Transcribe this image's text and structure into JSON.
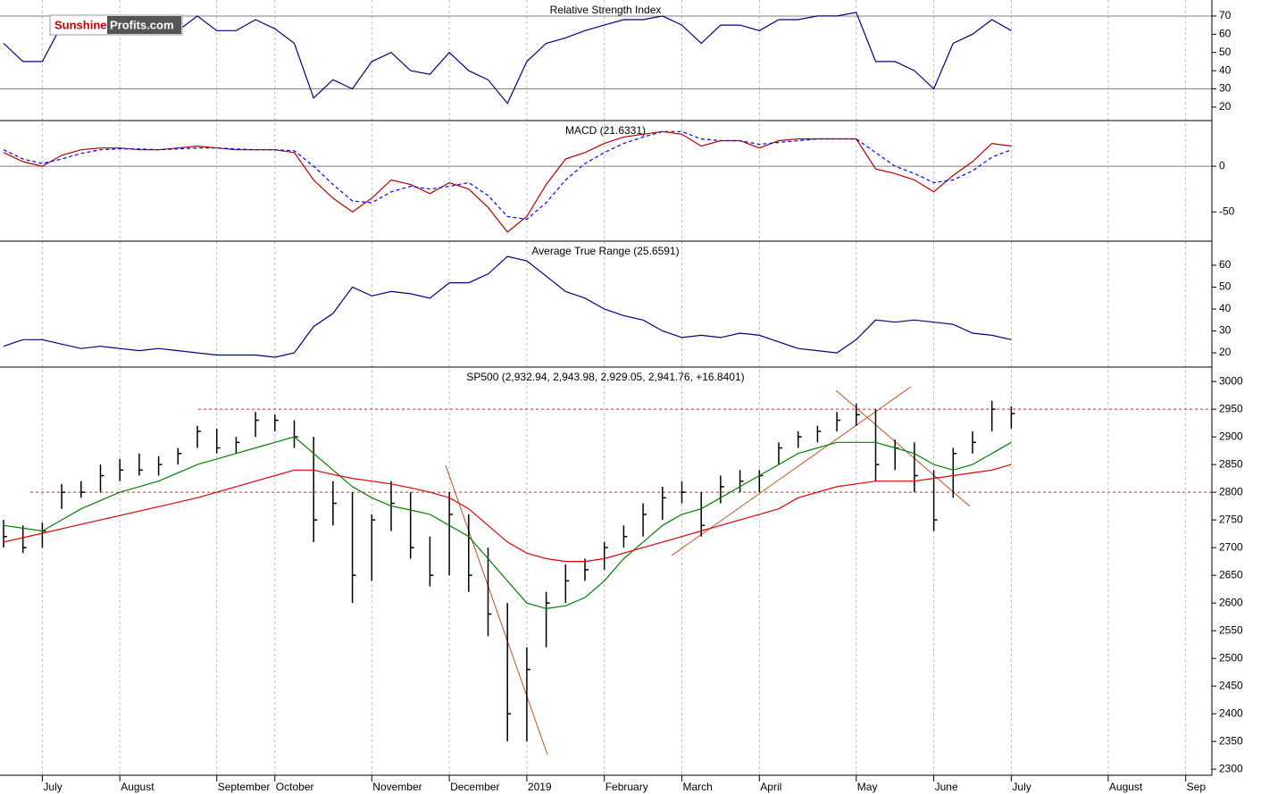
{
  "logo": {
    "brand": "Sunshine",
    "domain": "Profits.com"
  },
  "chart_data": [
    {
      "type": "line",
      "title": "Relative Strength Index",
      "ylim": [
        12.6,
        78.8
      ],
      "yticks": [
        20,
        30,
        40,
        50,
        60,
        70
      ],
      "hlines": [
        70,
        30
      ],
      "hline_color": "#808080",
      "series": [
        {
          "color": "#000080",
          "values": [
            55,
            45,
            45,
            65,
            65,
            62,
            60,
            62,
            60,
            62,
            70,
            62,
            62,
            68,
            63,
            55,
            25,
            35,
            30,
            45,
            50,
            40,
            38,
            50,
            40,
            35,
            22,
            45,
            55,
            58,
            62,
            65,
            68,
            68,
            70,
            65,
            55,
            65,
            65,
            62,
            68,
            68,
            70,
            70,
            72,
            45,
            45,
            40,
            30,
            55,
            60,
            68,
            62,
            null,
            null,
            null,
            null,
            null,
            null,
            null,
            null,
            null,
            null
          ]
        }
      ]
    },
    {
      "type": "line",
      "title": "MACD (21.6331)",
      "ylim": [
        -82,
        50
      ],
      "yticks": [
        0,
        -50
      ],
      "hlines": [
        0
      ],
      "hline_color": "#808080",
      "series": [
        {
          "color": "#b00000",
          "values": [
            15,
            5,
            0,
            12,
            18,
            20,
            20,
            18,
            18,
            20,
            22,
            20,
            18,
            18,
            18,
            15,
            -15,
            -35,
            -50,
            -35,
            -15,
            -20,
            -30,
            -18,
            -25,
            -45,
            -72,
            -55,
            -20,
            8,
            15,
            25,
            32,
            35,
            38,
            35,
            22,
            28,
            28,
            20,
            28,
            30,
            30,
            30,
            30,
            -3,
            -8,
            -15,
            -28,
            -10,
            5,
            25,
            22,
            null,
            null,
            null,
            null,
            null,
            null,
            null,
            null,
            null,
            null
          ]
        },
        {
          "color": "#0000ff",
          "dashed": true,
          "values": [
            18,
            8,
            3,
            8,
            14,
            18,
            19,
            19,
            18,
            19,
            20,
            20,
            19,
            18,
            18,
            17,
            0,
            -20,
            -38,
            -40,
            -28,
            -22,
            -25,
            -22,
            -18,
            -32,
            -55,
            -58,
            -40,
            -15,
            3,
            15,
            25,
            32,
            38,
            38,
            30,
            28,
            28,
            24,
            26,
            28,
            30,
            30,
            30,
            15,
            0,
            -8,
            -18,
            -15,
            -5,
            10,
            18,
            null,
            null,
            null,
            null,
            null,
            null,
            null,
            null,
            null,
            null
          ]
        }
      ]
    },
    {
      "type": "line",
      "title": "Average True Range (25.6591)",
      "ylim": [
        13.5,
        71
      ],
      "yticks": [
        20,
        30,
        40,
        50,
        60
      ],
      "series": [
        {
          "color": "#000080",
          "values": [
            23,
            26,
            26,
            24,
            22,
            23,
            22,
            21,
            22,
            21,
            20,
            19,
            19,
            19,
            18,
            20,
            32,
            38,
            50,
            46,
            48,
            47,
            45,
            52,
            52,
            56,
            64,
            62,
            55,
            48,
            45,
            40,
            37,
            35,
            30,
            27,
            28,
            27,
            29,
            28,
            25,
            22,
            21,
            20,
            26,
            35,
            34,
            35,
            34,
            33,
            29,
            28,
            26,
            null,
            null,
            null,
            null,
            null,
            null,
            null,
            null,
            null,
            null
          ]
        }
      ]
    },
    {
      "type": "ohlc",
      "title": "SP500 (2,932.94, 2,943.98, 2,929.05, 2,941.76, +16.8401)",
      "ylim": [
        2289,
        3026
      ],
      "yticks": [
        2300,
        2350,
        2400,
        2450,
        2500,
        2550,
        2600,
        2650,
        2700,
        2750,
        2800,
        2850,
        2900,
        2950,
        3000
      ],
      "hlines": [
        2950,
        2800
      ],
      "hline_color": "#c03030",
      "categories": [
        null,
        null,
        "July",
        null,
        null,
        null,
        "August",
        null,
        null,
        null,
        null,
        "September",
        null,
        null,
        "October",
        null,
        null,
        null,
        null,
        "November",
        null,
        null,
        null,
        "December",
        null,
        null,
        null,
        "2019",
        null,
        null,
        null,
        "February",
        null,
        null,
        null,
        "March",
        null,
        null,
        null,
        "April",
        null,
        null,
        null,
        null,
        "May",
        null,
        null,
        null,
        "June",
        null,
        null,
        null,
        "July",
        null,
        null,
        null,
        null,
        "August",
        null,
        null,
        null,
        "Sep",
        null
      ],
      "close": [
        2720,
        2700,
        2730,
        2800,
        2800,
        2830,
        2840,
        2840,
        2850,
        2870,
        2910,
        2880,
        2890,
        2930,
        2930,
        2900,
        2750,
        2780,
        2650,
        2750,
        2780,
        2700,
        2650,
        2760,
        2650,
        2580,
        2400,
        2480,
        2600,
        2640,
        2660,
        2700,
        2720,
        2760,
        2790,
        2800,
        2740,
        2810,
        2820,
        2830,
        2880,
        2900,
        2910,
        2930,
        2940,
        2850,
        2880,
        2830,
        2750,
        2870,
        2890,
        2950,
        2942,
        null,
        null,
        null,
        null,
        null,
        null,
        null,
        null,
        null,
        null
      ],
      "high": [
        2750,
        2740,
        2745,
        2815,
        2820,
        2850,
        2860,
        2870,
        2865,
        2880,
        2920,
        2915,
        2900,
        2945,
        2940,
        2930,
        2900,
        2820,
        2800,
        2760,
        2820,
        2800,
        2720,
        2800,
        2760,
        2700,
        2600,
        2520,
        2620,
        2670,
        2680,
        2710,
        2740,
        2780,
        2810,
        2820,
        2800,
        2830,
        2840,
        2840,
        2890,
        2910,
        2920,
        2945,
        2960,
        2950,
        2895,
        2890,
        2840,
        2880,
        2910,
        2965,
        2955,
        null,
        null,
        null,
        null,
        null,
        null,
        null,
        null,
        null,
        null
      ],
      "low": [
        2700,
        2690,
        2700,
        2770,
        2790,
        2800,
        2820,
        2830,
        2830,
        2850,
        2880,
        2870,
        2870,
        2900,
        2910,
        2880,
        2710,
        2740,
        2600,
        2640,
        2730,
        2680,
        2630,
        2650,
        2620,
        2540,
        2350,
        2350,
        2520,
        2600,
        2640,
        2660,
        2700,
        2720,
        2750,
        2780,
        2720,
        2780,
        2800,
        2800,
        2850,
        2880,
        2890,
        2910,
        2920,
        2820,
        2840,
        2800,
        2730,
        2790,
        2870,
        2910,
        2915,
        null,
        null,
        null,
        null,
        null,
        null,
        null,
        null,
        null,
        null
      ],
      "bar_color": "#000000",
      "series": [
        {
          "color": "#008000",
          "values": [
            2740,
            2735,
            2730,
            2750,
            2770,
            2785,
            2800,
            2810,
            2820,
            2835,
            2850,
            2860,
            2870,
            2880,
            2890,
            2900,
            2870,
            2840,
            2810,
            2790,
            2775,
            2768,
            2760,
            2740,
            2720,
            2680,
            2640,
            2600,
            2590,
            2595,
            2610,
            2640,
            2680,
            2710,
            2740,
            2760,
            2770,
            2790,
            2810,
            2830,
            2850,
            2870,
            2880,
            2890,
            2890,
            2890,
            2880,
            2870,
            2850,
            2840,
            2850,
            2870,
            2890,
            null,
            null,
            null,
            null,
            null,
            null,
            null,
            null,
            null,
            null
          ]
        },
        {
          "color": "#e00000",
          "values": [
            2710,
            2718,
            2726,
            2734,
            2742,
            2750,
            2758,
            2766,
            2774,
            2782,
            2790,
            2800,
            2810,
            2820,
            2830,
            2840,
            2840,
            2832,
            2825,
            2820,
            2815,
            2808,
            2800,
            2790,
            2770,
            2740,
            2710,
            2690,
            2680,
            2675,
            2675,
            2680,
            2690,
            2700,
            2710,
            2720,
            2730,
            2740,
            2750,
            2760,
            2770,
            2790,
            2800,
            2810,
            2815,
            2820,
            2820,
            2820,
            2825,
            2830,
            2835,
            2840,
            2850,
            null,
            null,
            null,
            null,
            null,
            null,
            null,
            null,
            null,
            null
          ]
        }
      ]
    }
  ]
}
